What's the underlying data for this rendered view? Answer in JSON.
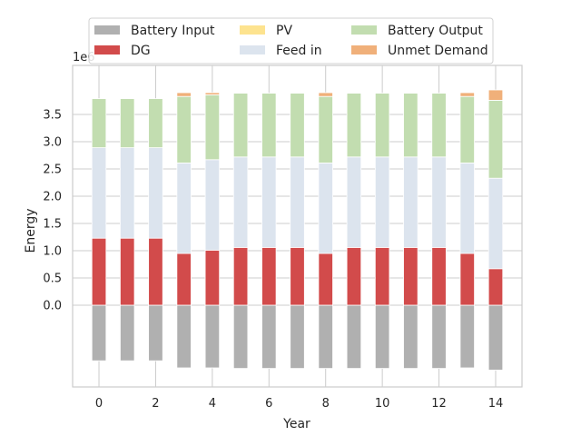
{
  "chart_data": {
    "type": "bar",
    "stacked": true,
    "xlabel": "Year",
    "ylabel": "Energy",
    "offset_text": "1e6",
    "x": [
      0,
      1,
      2,
      3,
      4,
      5,
      6,
      7,
      8,
      9,
      10,
      11,
      12,
      13,
      14
    ],
    "xticks": [
      "0",
      "2",
      "4",
      "6",
      "8",
      "10",
      "12",
      "14"
    ],
    "yticks": [
      "0.0",
      "0.5",
      "1.0",
      "1.5",
      "2.0",
      "2.5",
      "3.0",
      "3.5"
    ],
    "ylim": [
      -1.5,
      4.4
    ],
    "grid": true,
    "legend_position": "top",
    "series": [
      {
        "name": "Battery Input",
        "color": "#b0b0b0",
        "values": [
          -1.02,
          -1.02,
          -1.02,
          -1.15,
          -1.15,
          -1.16,
          -1.16,
          -1.16,
          -1.16,
          -1.16,
          -1.16,
          -1.16,
          -1.16,
          -1.15,
          -1.19
        ]
      },
      {
        "name": "DG",
        "color": "#d24b4b",
        "values": [
          1.23,
          1.23,
          1.23,
          0.95,
          1.01,
          1.06,
          1.06,
          1.06,
          0.95,
          1.06,
          1.06,
          1.06,
          1.06,
          0.95,
          0.67
        ]
      },
      {
        "name": "PV",
        "color": "#fde38f",
        "values": [
          0,
          0,
          0,
          0,
          0,
          0,
          0,
          0,
          0,
          0,
          0,
          0,
          0,
          0,
          0
        ]
      },
      {
        "name": "Feed in",
        "color": "#dce4ee",
        "values": [
          1.66,
          1.66,
          1.66,
          1.66,
          1.66,
          1.66,
          1.66,
          1.66,
          1.66,
          1.66,
          1.66,
          1.66,
          1.66,
          1.66,
          1.66
        ]
      },
      {
        "name": "Battery Output",
        "color": "#c2ddb0",
        "values": [
          0.9,
          0.9,
          0.9,
          1.22,
          1.19,
          1.17,
          1.17,
          1.17,
          1.22,
          1.17,
          1.17,
          1.17,
          1.17,
          1.22,
          1.43
        ]
      },
      {
        "name": "Unmet Demand",
        "color": "#f0b07a",
        "values": [
          0,
          0,
          0,
          0.07,
          0.04,
          0,
          0,
          0,
          0.07,
          0,
          0,
          0,
          0,
          0.07,
          0.19
        ]
      }
    ]
  }
}
